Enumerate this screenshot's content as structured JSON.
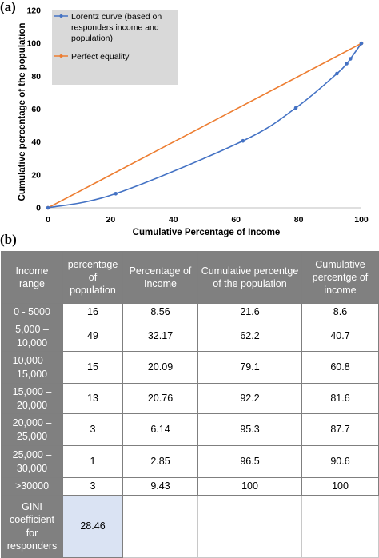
{
  "panel_a_label": "(a)",
  "panel_b_label": "(b)",
  "chart_data": {
    "type": "line",
    "xlabel": "Cumulative Percentage of Income",
    "ylabel": "Cumulative percentage of the population",
    "xlim": [
      0,
      100
    ],
    "ylim": [
      0,
      120
    ],
    "x_ticks": [
      0,
      20,
      40,
      60,
      80,
      100
    ],
    "y_ticks": [
      0,
      20,
      40,
      60,
      80,
      100,
      120
    ],
    "grid": false,
    "legend_position": "top-left",
    "series": [
      {
        "name": "Lorentz curve (based on responders income and population)",
        "color": "#4472c4",
        "markers": true,
        "smooth": true,
        "points": [
          [
            0,
            0
          ],
          [
            21.6,
            8.6
          ],
          [
            62.2,
            40.7
          ],
          [
            79.1,
            60.8
          ],
          [
            92.2,
            81.6
          ],
          [
            95.3,
            87.7
          ],
          [
            96.5,
            90.6
          ],
          [
            100,
            100
          ]
        ]
      },
      {
        "name": "Perfect equality",
        "color": "#ed7d31",
        "markers": true,
        "smooth": false,
        "points": [
          [
            0,
            0
          ],
          [
            100,
            100
          ]
        ]
      }
    ]
  },
  "table": {
    "headers": [
      "Income range",
      "percentage of population",
      "Percentage of Income",
      "Cumulative percentge of the population",
      "Cumulative percentge of income"
    ],
    "rows": [
      [
        "0 - 5000",
        "16",
        "8.56",
        "21.6",
        "8.6"
      ],
      [
        "5,000 – 10,000",
        "49",
        "32.17",
        "62.2",
        "40.7"
      ],
      [
        "10,000 – 15,000",
        "15",
        "20.09",
        "79.1",
        "60.8"
      ],
      [
        "15,000 – 20,000",
        "13",
        "20.76",
        "92.2",
        "81.6"
      ],
      [
        "20,000 – 25,000",
        "3",
        "6.14",
        "95.3",
        "87.7"
      ],
      [
        "25,000 – 30,000",
        "1",
        "2.85",
        "96.5",
        "90.6"
      ],
      [
        ">30000",
        "3",
        "9.43",
        "100",
        "100"
      ]
    ],
    "gini_label": "GINI coefficient for responders",
    "gini_value": "28.46"
  }
}
